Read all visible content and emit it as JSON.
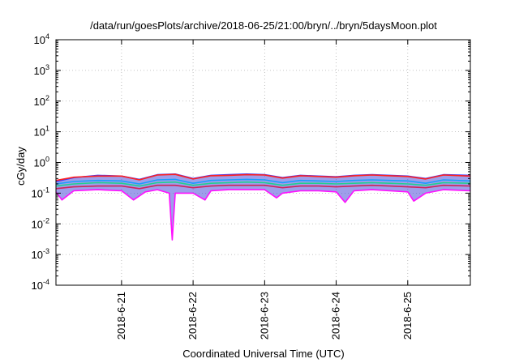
{
  "chart_data": {
    "type": "area",
    "title": "/data/run/goesPlots/archive/2018-06-25/21:00/bryn/../bryn/5daysMoon.plot",
    "xlabel": "Coordinated Universal Time (UTC)",
    "ylabel": "cGy/day",
    "yscale": "log",
    "ylim": [
      0.0001,
      10000
    ],
    "xlim": [
      "2018-06-20 02:00",
      "2018-06-25 21:00"
    ],
    "grid": true,
    "x_ticks": [
      "2018-6-21",
      "2018-6-22",
      "2018-6-23",
      "2018-6-24",
      "2018-6-25"
    ],
    "y_ticks": [
      {
        "base": "10",
        "exp": "-4",
        "value": 0.0001
      },
      {
        "base": "10",
        "exp": "-3",
        "value": 0.001
      },
      {
        "base": "10",
        "exp": "-2",
        "value": 0.01
      },
      {
        "base": "10",
        "exp": "-1",
        "value": 0.1
      },
      {
        "base": "10",
        "exp": "0",
        "value": 1
      },
      {
        "base": "10",
        "exp": "1",
        "value": 10
      },
      {
        "base": "10",
        "exp": "2",
        "value": 100
      },
      {
        "base": "10",
        "exp": "3",
        "value": 1000
      },
      {
        "base": "10",
        "exp": "4",
        "value": 10000
      }
    ],
    "series": [
      {
        "color": "#3c3cff",
        "fill": "#4e4ed8",
        "points": [
          [
            "2018-06-20 02:00",
            0.24
          ],
          [
            "2018-06-20 08:00",
            0.32
          ],
          [
            "2018-06-20 16:00",
            0.38
          ],
          [
            "2018-06-21 00:00",
            0.36
          ],
          [
            "2018-06-21 06:00",
            0.28
          ],
          [
            "2018-06-21 12:00",
            0.4
          ],
          [
            "2018-06-21 18:00",
            0.42
          ],
          [
            "2018-06-22 00:00",
            0.3
          ],
          [
            "2018-06-22 06:00",
            0.38
          ],
          [
            "2018-06-22 12:00",
            0.4
          ],
          [
            "2018-06-22 18:00",
            0.42
          ],
          [
            "2018-06-23 00:00",
            0.4
          ],
          [
            "2018-06-23 06:00",
            0.32
          ],
          [
            "2018-06-23 12:00",
            0.38
          ],
          [
            "2018-06-23 18:00",
            0.36
          ],
          [
            "2018-06-24 00:00",
            0.34
          ],
          [
            "2018-06-24 06:00",
            0.38
          ],
          [
            "2018-06-24 12:00",
            0.4
          ],
          [
            "2018-06-24 18:00",
            0.38
          ],
          [
            "2018-06-25 00:00",
            0.36
          ],
          [
            "2018-06-25 06:00",
            0.3
          ],
          [
            "2018-06-25 12:00",
            0.4
          ],
          [
            "2018-06-25 21:00",
            0.38
          ]
        ]
      },
      {
        "color": "#ff2020",
        "points": [
          [
            "2018-06-20 02:00",
            0.26
          ],
          [
            "2018-06-20 08:00",
            0.33
          ],
          [
            "2018-06-20 16:00",
            0.36
          ],
          [
            "2018-06-21 00:00",
            0.36
          ],
          [
            "2018-06-21 06:00",
            0.27
          ],
          [
            "2018-06-21 12:00",
            0.39
          ],
          [
            "2018-06-21 18:00",
            0.41
          ],
          [
            "2018-06-22 00:00",
            0.29
          ],
          [
            "2018-06-22 06:00",
            0.37
          ],
          [
            "2018-06-22 12:00",
            0.38
          ],
          [
            "2018-06-22 18:00",
            0.4
          ],
          [
            "2018-06-23 00:00",
            0.39
          ],
          [
            "2018-06-23 06:00",
            0.31
          ],
          [
            "2018-06-23 12:00",
            0.37
          ],
          [
            "2018-06-23 18:00",
            0.35
          ],
          [
            "2018-06-24 00:00",
            0.33
          ],
          [
            "2018-06-24 06:00",
            0.37
          ],
          [
            "2018-06-24 12:00",
            0.39
          ],
          [
            "2018-06-24 18:00",
            0.37
          ],
          [
            "2018-06-25 00:00",
            0.35
          ],
          [
            "2018-06-25 06:00",
            0.29
          ],
          [
            "2018-06-25 12:00",
            0.39
          ],
          [
            "2018-06-25 21:00",
            0.36
          ]
        ]
      },
      {
        "color": "#1a9cff",
        "points": [
          [
            "2018-06-20 02:00",
            0.2
          ],
          [
            "2018-06-20 08:00",
            0.24
          ],
          [
            "2018-06-20 16:00",
            0.26
          ],
          [
            "2018-06-21 00:00",
            0.25
          ],
          [
            "2018-06-21 06:00",
            0.2
          ],
          [
            "2018-06-21 12:00",
            0.27
          ],
          [
            "2018-06-21 18:00",
            0.28
          ],
          [
            "2018-06-22 00:00",
            0.21
          ],
          [
            "2018-06-22 06:00",
            0.26
          ],
          [
            "2018-06-22 12:00",
            0.27
          ],
          [
            "2018-06-22 18:00",
            0.28
          ],
          [
            "2018-06-23 00:00",
            0.27
          ],
          [
            "2018-06-23 06:00",
            0.22
          ],
          [
            "2018-06-23 12:00",
            0.26
          ],
          [
            "2018-06-23 18:00",
            0.25
          ],
          [
            "2018-06-24 00:00",
            0.24
          ],
          [
            "2018-06-24 06:00",
            0.26
          ],
          [
            "2018-06-24 12:00",
            0.27
          ],
          [
            "2018-06-24 18:00",
            0.26
          ],
          [
            "2018-06-25 00:00",
            0.25
          ],
          [
            "2018-06-25 06:00",
            0.21
          ],
          [
            "2018-06-25 12:00",
            0.27
          ],
          [
            "2018-06-25 21:00",
            0.25
          ]
        ]
      },
      {
        "color": "#20d090",
        "points": [
          [
            "2018-06-20 02:00",
            0.17
          ],
          [
            "2018-06-20 08:00",
            0.2
          ],
          [
            "2018-06-20 16:00",
            0.22
          ],
          [
            "2018-06-21 00:00",
            0.21
          ],
          [
            "2018-06-21 06:00",
            0.17
          ],
          [
            "2018-06-21 12:00",
            0.22
          ],
          [
            "2018-06-21 18:00",
            0.23
          ],
          [
            "2018-06-22 00:00",
            0.18
          ],
          [
            "2018-06-22 06:00",
            0.21
          ],
          [
            "2018-06-22 12:00",
            0.22
          ],
          [
            "2018-06-22 18:00",
            0.23
          ],
          [
            "2018-06-23 00:00",
            0.22
          ],
          [
            "2018-06-23 06:00",
            0.18
          ],
          [
            "2018-06-23 12:00",
            0.21
          ],
          [
            "2018-06-23 18:00",
            0.21
          ],
          [
            "2018-06-24 00:00",
            0.2
          ],
          [
            "2018-06-24 06:00",
            0.21
          ],
          [
            "2018-06-24 12:00",
            0.22
          ],
          [
            "2018-06-24 18:00",
            0.21
          ],
          [
            "2018-06-25 00:00",
            0.2
          ],
          [
            "2018-06-25 06:00",
            0.18
          ],
          [
            "2018-06-25 12:00",
            0.22
          ],
          [
            "2018-06-25 21:00",
            0.21
          ]
        ]
      },
      {
        "color": "#d0205a",
        "points": [
          [
            "2018-06-20 02:00",
            0.14
          ],
          [
            "2018-06-20 08:00",
            0.16
          ],
          [
            "2018-06-20 16:00",
            0.17
          ],
          [
            "2018-06-21 00:00",
            0.17
          ],
          [
            "2018-06-21 06:00",
            0.14
          ],
          [
            "2018-06-21 12:00",
            0.18
          ],
          [
            "2018-06-21 18:00",
            0.18
          ],
          [
            "2018-06-22 00:00",
            0.15
          ],
          [
            "2018-06-22 06:00",
            0.17
          ],
          [
            "2018-06-22 12:00",
            0.18
          ],
          [
            "2018-06-22 18:00",
            0.18
          ],
          [
            "2018-06-23 00:00",
            0.18
          ],
          [
            "2018-06-23 06:00",
            0.15
          ],
          [
            "2018-06-23 12:00",
            0.17
          ],
          [
            "2018-06-23 18:00",
            0.17
          ],
          [
            "2018-06-24 00:00",
            0.16
          ],
          [
            "2018-06-24 06:00",
            0.17
          ],
          [
            "2018-06-24 12:00",
            0.18
          ],
          [
            "2018-06-24 18:00",
            0.17
          ],
          [
            "2018-06-25 00:00",
            0.16
          ],
          [
            "2018-06-25 06:00",
            0.15
          ],
          [
            "2018-06-25 12:00",
            0.18
          ],
          [
            "2018-06-25 21:00",
            0.17
          ]
        ]
      },
      {
        "color": "#ff10ff",
        "points": [
          [
            "2018-06-20 02:00",
            0.11
          ],
          [
            "2018-06-20 04:00",
            0.06
          ],
          [
            "2018-06-20 08:00",
            0.12
          ],
          [
            "2018-06-20 16:00",
            0.13
          ],
          [
            "2018-06-21 00:00",
            0.12
          ],
          [
            "2018-06-21 04:00",
            0.06
          ],
          [
            "2018-06-21 08:00",
            0.11
          ],
          [
            "2018-06-21 12:00",
            0.13
          ],
          [
            "2018-06-21 16:00",
            0.1
          ],
          [
            "2018-06-21 17:00",
            0.003
          ],
          [
            "2018-06-21 18:00",
            0.1
          ],
          [
            "2018-06-22 00:00",
            0.1
          ],
          [
            "2018-06-22 04:00",
            0.06
          ],
          [
            "2018-06-22 06:00",
            0.12
          ],
          [
            "2018-06-22 12:00",
            0.13
          ],
          [
            "2018-06-22 18:00",
            0.13
          ],
          [
            "2018-06-23 00:00",
            0.13
          ],
          [
            "2018-06-23 04:00",
            0.07
          ],
          [
            "2018-06-23 06:00",
            0.1
          ],
          [
            "2018-06-23 12:00",
            0.12
          ],
          [
            "2018-06-23 18:00",
            0.12
          ],
          [
            "2018-06-24 00:00",
            0.11
          ],
          [
            "2018-06-24 03:00",
            0.05
          ],
          [
            "2018-06-24 06:00",
            0.12
          ],
          [
            "2018-06-24 12:00",
            0.13
          ],
          [
            "2018-06-24 18:00",
            0.12
          ],
          [
            "2018-06-25 00:00",
            0.11
          ],
          [
            "2018-06-25 02:00",
            0.055
          ],
          [
            "2018-06-25 06:00",
            0.1
          ],
          [
            "2018-06-25 12:00",
            0.13
          ],
          [
            "2018-06-25 21:00",
            0.12
          ]
        ]
      }
    ]
  }
}
